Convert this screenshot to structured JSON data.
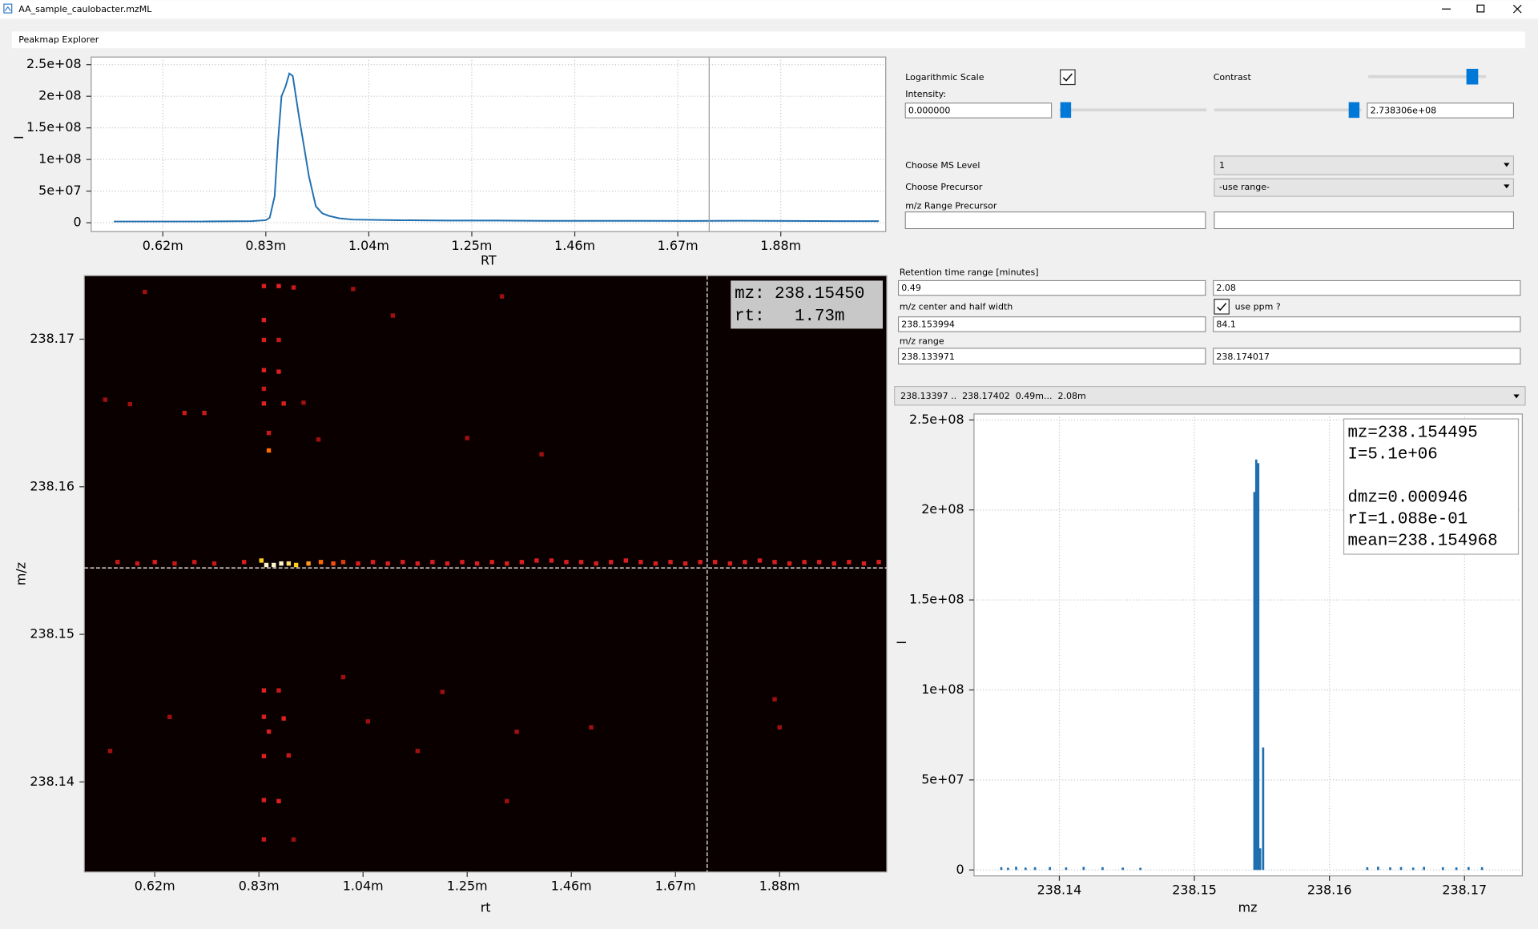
{
  "window": {
    "title": "AA_sample_caulobacter.mzML",
    "tab": "Peakmap Explorer"
  },
  "controls": {
    "log_scale": {
      "label": "Logarithmic Scale",
      "checked": true
    },
    "contrast": {
      "label": "Contrast"
    },
    "intensity": {
      "label": "Intensity:",
      "min": "0.000000",
      "max": "2.738306e+08"
    },
    "ms_level": {
      "label": "Choose MS Level",
      "value": "1"
    },
    "precursor": {
      "label": "Choose Precursor",
      "value": "-use range-"
    },
    "mz_range_precursor": {
      "label": "m/z Range Precursor"
    },
    "rt_range": {
      "label": "Retention time range [minutes]",
      "min": "0.49",
      "max": "2.08"
    },
    "mz_center": {
      "label": "m/z center and half width",
      "center": "238.153994",
      "half_width": "84.1",
      "use_ppm": {
        "label": "use ppm ?",
        "checked": true
      }
    },
    "mz_range": {
      "label": "m/z range",
      "min": "238.133971",
      "max": "238.174017"
    },
    "selector": "238.13397 ..  238.17402  0.49m...  2.08m"
  },
  "chart_data": [
    {
      "type": "line",
      "xlabel": "RT",
      "ylabel": "I",
      "xlim": [
        0.474,
        2.094
      ],
      "ylim": [
        -14000000,
        262000000
      ],
      "grid": true,
      "background": "#ffffff",
      "cursor_x": 1.734,
      "xticks": [
        {
          "value": 0.62,
          "label": "0.62m"
        },
        {
          "value": 0.83,
          "label": "0.83m"
        },
        {
          "value": 1.04,
          "label": "1.04m"
        },
        {
          "value": 1.25,
          "label": "1.25m"
        },
        {
          "value": 1.46,
          "label": "1.46m"
        },
        {
          "value": 1.67,
          "label": "1.67m"
        },
        {
          "value": 1.88,
          "label": "1.88m"
        }
      ],
      "yticks": [
        0,
        {
          "value": 50000000,
          "label": "5e+07"
        },
        {
          "value": 100000000,
          "label": "1e+08"
        },
        {
          "value": 150000000,
          "label": "1.5e+08"
        },
        {
          "value": 200000000,
          "label": "2e+08"
        },
        {
          "value": 250000000,
          "label": "2.5e+08"
        }
      ],
      "series": [
        {
          "color": "#1f6fb0",
          "x": [
            0.52,
            0.6,
            0.7,
            0.8,
            0.83,
            0.838,
            0.848,
            0.855,
            0.862,
            0.87,
            0.878,
            0.885,
            0.898,
            0.908,
            0.918,
            0.932,
            0.945,
            0.958,
            0.98,
            1.008,
            1.1,
            1.2,
            1.3,
            1.4,
            1.5,
            1.6,
            1.7,
            1.8,
            1.9,
            2.0,
            2.08
          ],
          "values": [
            2000000,
            2000000,
            2000000,
            2500000,
            4000000,
            8000000,
            42000000,
            130000000,
            200000000,
            215000000,
            236000000,
            232000000,
            166000000,
            120000000,
            73000000,
            26000000,
            15000000,
            11000000,
            7000000,
            5000000,
            4000000,
            3500000,
            3500000,
            3000000,
            3000000,
            3000000,
            2800000,
            3200000,
            2800000,
            2500000,
            2500000
          ]
        }
      ]
    },
    {
      "type": "scatter",
      "xlabel": "rt",
      "ylabel": "m/z",
      "xlim": [
        0.478,
        2.096
      ],
      "ylim": [
        238.1339,
        238.1743
      ],
      "background": "#0a0000",
      "xticks": [
        {
          "value": 0.62,
          "label": "0.62m"
        },
        {
          "value": 0.83,
          "label": "0.83m"
        },
        {
          "value": 1.04,
          "label": "1.04m"
        },
        {
          "value": 1.25,
          "label": "1.25m"
        },
        {
          "value": 1.46,
          "label": "1.46m"
        },
        {
          "value": 1.67,
          "label": "1.67m"
        },
        {
          "value": 1.88,
          "label": "1.88m"
        }
      ],
      "yticks": [
        238.14,
        238.15,
        238.16,
        238.17
      ],
      "cursor": {
        "x": 1.734,
        "y": 238.1545
      },
      "readout": [
        "mz: 238.15450",
        "rt:   1.73m"
      ],
      "points": [
        [
          0.545,
          238.1549,
          "#c81818"
        ],
        [
          0.585,
          238.1548,
          "#c81818"
        ],
        [
          0.62,
          238.1549,
          "#d81e1e"
        ],
        [
          0.66,
          238.1548,
          "#c81818"
        ],
        [
          0.7,
          238.1549,
          "#c81818"
        ],
        [
          0.74,
          238.1548,
          "#c81818"
        ],
        [
          0.8,
          238.1549,
          "#d81e1e"
        ],
        [
          0.835,
          238.155,
          "#ffd21a"
        ],
        [
          0.845,
          238.1547,
          "#fff6d0"
        ],
        [
          0.86,
          238.1547,
          "#fff6d0"
        ],
        [
          0.875,
          238.1548,
          "#fff6d0"
        ],
        [
          0.89,
          238.1548,
          "#ffe070"
        ],
        [
          0.905,
          238.1547,
          "#ffd21a"
        ],
        [
          0.93,
          238.1548,
          "#ff9a20"
        ],
        [
          0.955,
          238.1549,
          "#ff6a00"
        ],
        [
          0.98,
          238.1548,
          "#f05010"
        ],
        [
          1.0,
          238.1549,
          "#e03a14"
        ],
        [
          1.03,
          238.1548,
          "#d81e1e"
        ],
        [
          1.06,
          238.1549,
          "#d81e1e"
        ],
        [
          1.09,
          238.1548,
          "#d81e1e"
        ],
        [
          1.12,
          238.1549,
          "#d81e1e"
        ],
        [
          1.15,
          238.1548,
          "#d81e1e"
        ],
        [
          1.18,
          238.1549,
          "#d81e1e"
        ],
        [
          1.21,
          238.1548,
          "#d81e1e"
        ],
        [
          1.24,
          238.1549,
          "#d81e1e"
        ],
        [
          1.27,
          238.1548,
          "#d81e1e"
        ],
        [
          1.3,
          238.1549,
          "#d81e1e"
        ],
        [
          1.33,
          238.1548,
          "#d81e1e"
        ],
        [
          1.36,
          238.1549,
          "#d81e1e"
        ],
        [
          1.39,
          238.155,
          "#d81e1e"
        ],
        [
          1.42,
          238.155,
          "#d81e1e"
        ],
        [
          1.45,
          238.1549,
          "#d81e1e"
        ],
        [
          1.48,
          238.1549,
          "#d81e1e"
        ],
        [
          1.51,
          238.1548,
          "#d81e1e"
        ],
        [
          1.54,
          238.1549,
          "#d81e1e"
        ],
        [
          1.57,
          238.155,
          "#d81e1e"
        ],
        [
          1.6,
          238.1549,
          "#d81e1e"
        ],
        [
          1.63,
          238.1548,
          "#d81e1e"
        ],
        [
          1.66,
          238.1549,
          "#d81e1e"
        ],
        [
          1.69,
          238.1548,
          "#d81e1e"
        ],
        [
          1.72,
          238.1549,
          "#d81e1e"
        ],
        [
          1.75,
          238.1549,
          "#d81e1e"
        ],
        [
          1.78,
          238.1548,
          "#d81e1e"
        ],
        [
          1.81,
          238.1549,
          "#d81e1e"
        ],
        [
          1.84,
          238.155,
          "#d81e1e"
        ],
        [
          1.87,
          238.1549,
          "#d81e1e"
        ],
        [
          1.9,
          238.1548,
          "#d81e1e"
        ],
        [
          1.93,
          238.1549,
          "#d81e1e"
        ],
        [
          1.96,
          238.1549,
          "#d81e1e"
        ],
        [
          1.99,
          238.1548,
          "#d81e1e"
        ],
        [
          2.02,
          238.1549,
          "#d81e1e"
        ],
        [
          2.05,
          238.1548,
          "#d81e1e"
        ],
        [
          2.08,
          238.1549,
          "#d81e1e"
        ],
        [
          0.84,
          238.1736,
          "#d81e1e"
        ],
        [
          0.87,
          238.1736,
          "#e02020"
        ],
        [
          0.9,
          238.1735,
          "#c81818"
        ],
        [
          0.84,
          238.1713,
          "#e02020"
        ],
        [
          0.84,
          238.16995,
          "#d81e1e"
        ],
        [
          0.87,
          238.16995,
          "#c81818"
        ],
        [
          0.84,
          238.1679,
          "#e02020"
        ],
        [
          0.87,
          238.1678,
          "#d81e1e"
        ],
        [
          0.84,
          238.16664,
          "#c81818"
        ],
        [
          0.84,
          238.16564,
          "#e02020"
        ],
        [
          0.88,
          238.16564,
          "#d81e1e"
        ],
        [
          0.92,
          238.1657,
          "#a01010"
        ],
        [
          0.85,
          238.16365,
          "#c81818"
        ],
        [
          0.85,
          238.16246,
          "#ff6a00"
        ],
        [
          0.95,
          238.1632,
          "#a01010"
        ],
        [
          0.84,
          238.1462,
          "#e02020"
        ],
        [
          0.87,
          238.1462,
          "#c81818"
        ],
        [
          0.84,
          238.14441,
          "#d81e1e"
        ],
        [
          0.88,
          238.1443,
          "#e02020"
        ],
        [
          0.85,
          238.14341,
          "#d81e1e"
        ],
        [
          0.84,
          238.14175,
          "#e02020"
        ],
        [
          0.89,
          238.1418,
          "#c81818"
        ],
        [
          0.84,
          238.13877,
          "#d81e1e"
        ],
        [
          0.87,
          238.1387,
          "#e02020"
        ],
        [
          0.84,
          238.13611,
          "#c81818"
        ],
        [
          0.9,
          238.1361,
          "#a01010"
        ],
        [
          0.52,
          238.1659,
          "#a01010"
        ],
        [
          0.57,
          238.1656,
          "#a01010"
        ],
        [
          0.6,
          238.1732,
          "#a01010"
        ],
        [
          0.68,
          238.165,
          "#c81818"
        ],
        [
          0.72,
          238.165,
          "#c81818"
        ],
        [
          0.65,
          238.1444,
          "#a01010"
        ],
        [
          0.53,
          238.1421,
          "#a01010"
        ],
        [
          1.0,
          238.1471,
          "#a01010"
        ],
        [
          1.05,
          238.1441,
          "#a01010"
        ],
        [
          1.2,
          238.1461,
          "#a01010"
        ],
        [
          1.15,
          238.1421,
          "#a01010"
        ],
        [
          1.35,
          238.1434,
          "#a01010"
        ],
        [
          1.5,
          238.1437,
          "#a01010"
        ],
        [
          1.33,
          238.1387,
          "#a01010"
        ],
        [
          1.87,
          238.1456,
          "#a01010"
        ],
        [
          1.88,
          238.1437,
          "#a01010"
        ],
        [
          1.1,
          238.1716,
          "#a01010"
        ],
        [
          1.32,
          238.1729,
          "#a01010"
        ],
        [
          1.02,
          238.1734,
          "#a01010"
        ],
        [
          1.25,
          238.1633,
          "#a01010"
        ],
        [
          1.4,
          238.1622,
          "#a01010"
        ]
      ]
    },
    {
      "type": "bar",
      "xlabel": "mz",
      "ylabel": "I",
      "xlim": [
        238.13368,
        238.17428
      ],
      "ylim": [
        -3300000,
        253300000
      ],
      "grid": true,
      "background": "#ffffff",
      "color": "#1f6fb0",
      "xticks": [
        238.14,
        238.15,
        238.16,
        238.17
      ],
      "yticks": [
        0,
        {
          "value": 50000000,
          "label": "5e+07"
        },
        {
          "value": 100000000,
          "label": "1e+08"
        },
        {
          "value": 150000000,
          "label": "1.5e+08"
        },
        {
          "value": 200000000,
          "label": "2e+08"
        },
        {
          "value": 250000000,
          "label": "2.5e+08"
        }
      ],
      "x": [
        238.1357,
        238.1362,
        238.1368,
        238.1375,
        238.1382,
        238.1393,
        238.1405,
        238.1418,
        238.1432,
        238.1447,
        238.146,
        238.15444,
        238.15458,
        238.15473,
        238.15487,
        238.15509,
        238.1628,
        238.1636,
        238.1645,
        238.1653,
        238.1662,
        238.167,
        238.1684,
        238.1694,
        238.1703,
        238.1713
      ],
      "values": [
        1500000,
        1200000,
        1800000,
        1300000,
        1500000,
        1600000,
        1400000,
        1700000,
        1500000,
        1300000,
        1200000,
        210000000,
        228000000,
        226000000,
        12000000,
        68000000,
        1500000,
        1800000,
        1400000,
        1600000,
        1300000,
        1700000,
        1500000,
        1400000,
        1600000,
        1500000
      ],
      "annotation": [
        "mz=238.154495",
        "I=5.1e+06",
        "dmz=0.000946",
        "rI=1.088e-01",
        "mean=238.154968"
      ]
    }
  ]
}
